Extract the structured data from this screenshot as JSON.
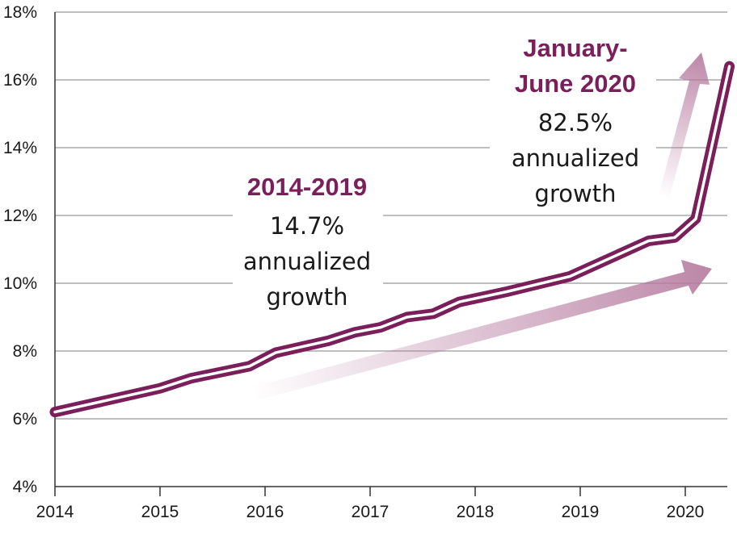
{
  "chart_data": {
    "type": "line",
    "title": "",
    "xlabel": "",
    "ylabel": "",
    "x_ticks": [
      "2014",
      "2015",
      "2016",
      "2017",
      "2018",
      "2019",
      "2020"
    ],
    "y_ticks": [
      "4%",
      "6%",
      "8%",
      "10%",
      "12%",
      "14%",
      "16%",
      "18%"
    ],
    "xlim": [
      2014,
      2020.45
    ],
    "ylim": [
      4,
      18
    ],
    "grid": "horizontal",
    "series": [
      {
        "x": [
          2014.0,
          2015.0,
          2015.3,
          2015.85,
          2016.1,
          2016.6,
          2016.85,
          2017.1,
          2017.35,
          2017.6,
          2017.85,
          2018.3,
          2018.9,
          2019.15,
          2019.4,
          2019.65,
          2019.9,
          2020.1,
          2020.42
        ],
        "y": [
          6.2,
          6.9,
          7.2,
          7.55,
          7.95,
          8.3,
          8.55,
          8.7,
          9.0,
          9.1,
          9.45,
          9.75,
          10.2,
          10.55,
          10.9,
          11.25,
          11.35,
          11.9,
          16.4
        ],
        "color": "#7b1f5a"
      }
    ],
    "annotations": [
      {
        "id": "period-2014-2019",
        "title": "2014-2019",
        "lines": [
          "14.7%",
          "annualized",
          "growth"
        ]
      },
      {
        "id": "period-2020",
        "title": [
          "January-",
          "June 2020"
        ],
        "lines": [
          "82.5%",
          "annualized",
          "growth"
        ]
      }
    ],
    "colors": {
      "series": "#7b1f5a",
      "arrow": "#b5799e",
      "grid": "#999999",
      "axis": "#333333"
    }
  }
}
